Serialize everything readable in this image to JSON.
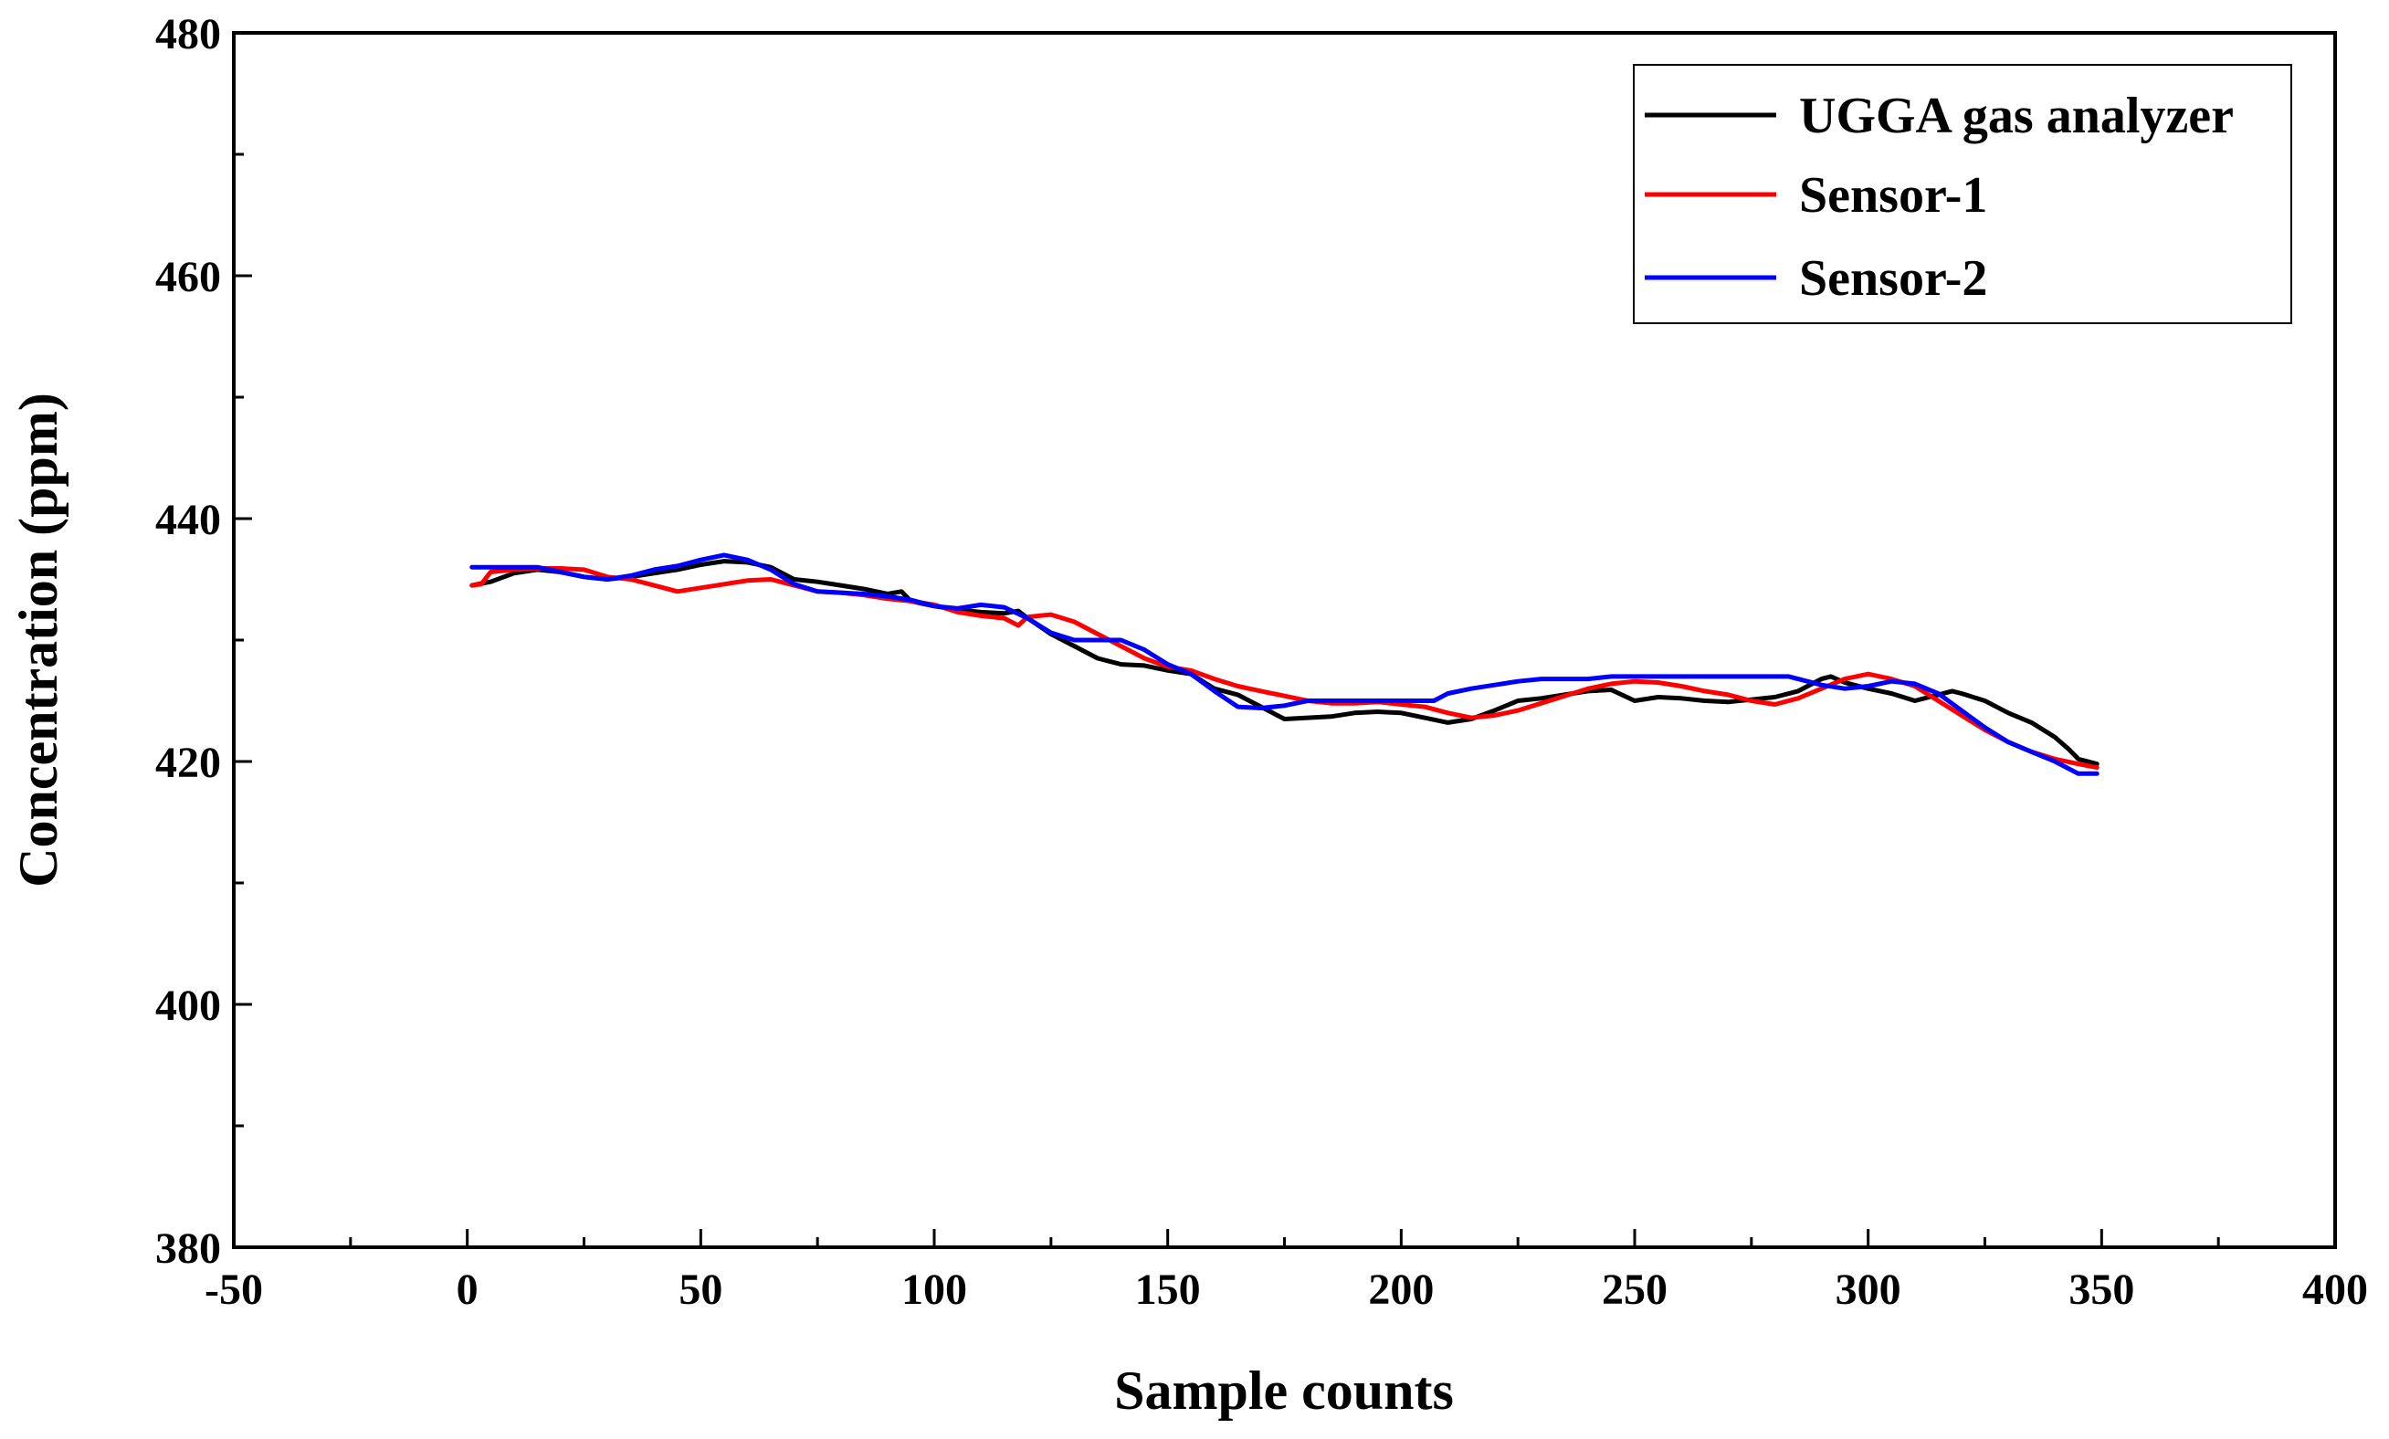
{
  "chart_data": {
    "type": "line",
    "title": "",
    "xlabel": "Sample counts",
    "ylabel": "Concentration (ppm)",
    "xlim": [
      -50,
      400
    ],
    "ylim": [
      380,
      480
    ],
    "x_ticks": [
      -50,
      0,
      50,
      100,
      150,
      200,
      250,
      300,
      350,
      400
    ],
    "y_ticks": [
      380,
      400,
      420,
      440,
      460,
      480
    ],
    "x_tick_labels": [
      "-50",
      "0",
      "50",
      "100",
      "150",
      "200",
      "250",
      "300",
      "350",
      "400"
    ],
    "y_tick_labels": [
      "380",
      "400",
      "420",
      "440",
      "460",
      "480"
    ],
    "grid": false,
    "legend_position": "top-right",
    "series": [
      {
        "name": "UGGA gas analyzer",
        "color": "#000000",
        "x": [
          1,
          5,
          10,
          15,
          20,
          25,
          30,
          35,
          40,
          45,
          50,
          55,
          60,
          65,
          70,
          75,
          80,
          85,
          90,
          93,
          95,
          100,
          105,
          110,
          115,
          118,
          120,
          125,
          130,
          135,
          140,
          145,
          150,
          155,
          160,
          165,
          170,
          175,
          180,
          185,
          190,
          195,
          200,
          205,
          210,
          215,
          220,
          225,
          230,
          235,
          240,
          245,
          250,
          255,
          260,
          265,
          270,
          275,
          280,
          285,
          290,
          292,
          295,
          300,
          305,
          310,
          315,
          318,
          320,
          325,
          330,
          335,
          340,
          343,
          345,
          349
        ],
        "values": [
          434.5,
          434.8,
          435.5,
          435.8,
          435.6,
          435.2,
          435.0,
          435.2,
          435.5,
          435.8,
          436.2,
          436.5,
          436.4,
          436.0,
          435.0,
          434.8,
          434.5,
          434.2,
          433.8,
          434.0,
          433.2,
          432.8,
          432.5,
          432.3,
          432.2,
          432.4,
          431.8,
          430.5,
          429.5,
          428.5,
          428.0,
          427.9,
          427.5,
          427.2,
          426.0,
          425.5,
          424.5,
          423.5,
          423.6,
          423.7,
          424.0,
          424.1,
          424.0,
          423.6,
          423.2,
          423.5,
          424.2,
          425.0,
          425.2,
          425.5,
          425.8,
          425.9,
          425.0,
          425.3,
          425.2,
          425.0,
          424.9,
          425.1,
          425.3,
          425.8,
          426.8,
          427.0,
          426.5,
          426.0,
          425.6,
          425.0,
          425.5,
          425.8,
          425.6,
          425.0,
          424.0,
          423.2,
          422.0,
          421.0,
          420.2,
          419.8
        ]
      },
      {
        "name": "Sensor-1",
        "color": "#ff0000",
        "x": [
          1,
          3,
          5,
          10,
          15,
          20,
          25,
          30,
          35,
          40,
          45,
          50,
          55,
          60,
          65,
          70,
          75,
          80,
          85,
          90,
          95,
          100,
          105,
          110,
          115,
          118,
          120,
          125,
          130,
          135,
          140,
          145,
          150,
          155,
          160,
          165,
          170,
          175,
          180,
          185,
          190,
          195,
          200,
          205,
          210,
          215,
          220,
          225,
          230,
          235,
          240,
          245,
          250,
          255,
          260,
          265,
          270,
          275,
          280,
          285,
          290,
          295,
          300,
          305,
          310,
          315,
          320,
          325,
          330,
          335,
          340,
          345,
          349
        ],
        "values": [
          434.5,
          434.6,
          435.6,
          435.8,
          435.9,
          435.9,
          435.8,
          435.2,
          435.0,
          434.5,
          434.0,
          434.3,
          434.6,
          434.9,
          435.0,
          434.5,
          434.0,
          433.9,
          433.7,
          433.4,
          433.2,
          432.9,
          432.3,
          432.0,
          431.8,
          431.2,
          431.9,
          432.1,
          431.5,
          430.5,
          429.5,
          428.5,
          427.8,
          427.5,
          426.8,
          426.2,
          425.8,
          425.4,
          425.0,
          424.8,
          424.8,
          424.9,
          424.7,
          424.5,
          424.0,
          423.6,
          423.8,
          424.2,
          424.8,
          425.4,
          426.0,
          426.4,
          426.6,
          426.5,
          426.2,
          425.8,
          425.5,
          425.0,
          424.7,
          425.2,
          426.0,
          426.8,
          427.2,
          426.8,
          426.2,
          425.0,
          423.8,
          422.6,
          421.6,
          420.8,
          420.2,
          419.8,
          419.5
        ]
      },
      {
        "name": "Sensor-2",
        "color": "#0000ff",
        "x": [
          1,
          5,
          10,
          15,
          20,
          25,
          30,
          35,
          40,
          45,
          50,
          55,
          60,
          65,
          70,
          75,
          80,
          85,
          90,
          95,
          100,
          105,
          110,
          115,
          120,
          125,
          130,
          135,
          140,
          145,
          150,
          155,
          160,
          165,
          170,
          175,
          180,
          185,
          190,
          195,
          200,
          205,
          207,
          210,
          215,
          220,
          225,
          230,
          235,
          240,
          245,
          250,
          255,
          260,
          265,
          270,
          275,
          280,
          283,
          285,
          290,
          295,
          300,
          305,
          310,
          315,
          320,
          325,
          330,
          335,
          340,
          345,
          349
        ],
        "values": [
          436.0,
          436.0,
          436.0,
          436.0,
          435.6,
          435.2,
          435.0,
          435.3,
          435.8,
          436.1,
          436.6,
          437.0,
          436.6,
          435.8,
          434.6,
          434.0,
          433.9,
          433.8,
          433.6,
          433.3,
          432.8,
          432.6,
          432.9,
          432.7,
          431.8,
          430.6,
          430.0,
          430.0,
          430.0,
          429.2,
          428.0,
          427.2,
          425.8,
          424.5,
          424.4,
          424.6,
          425.0,
          425.0,
          425.0,
          425.0,
          425.0,
          425.0,
          425.0,
          425.6,
          426.0,
          426.3,
          426.6,
          426.8,
          426.8,
          426.8,
          427.0,
          427.0,
          427.0,
          427.0,
          427.0,
          427.0,
          427.0,
          427.0,
          427.0,
          426.8,
          426.3,
          426.0,
          426.2,
          426.6,
          426.4,
          425.6,
          424.2,
          422.8,
          421.6,
          420.8,
          420.0,
          419.0,
          419.0
        ]
      }
    ]
  }
}
